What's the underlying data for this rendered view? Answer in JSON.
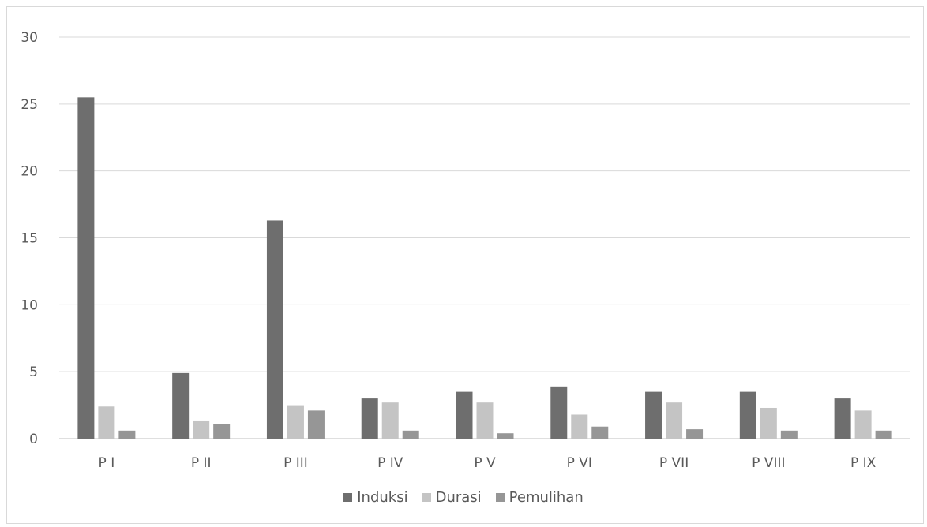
{
  "chart_data": {
    "type": "bar",
    "title": "",
    "xlabel": "",
    "ylabel": "",
    "ylim": [
      0,
      30
    ],
    "yticks": [
      0,
      5,
      10,
      15,
      20,
      25,
      30
    ],
    "grid": true,
    "legend_position": "bottom",
    "categories": [
      "P I",
      "P II",
      "P III",
      "P IV",
      "P V",
      "P VI",
      "P VII",
      "P VIII",
      "P IX"
    ],
    "series": [
      {
        "name": "Induksi",
        "color": "#6e6e6e",
        "values": [
          25.5,
          4.9,
          16.3,
          3.0,
          3.5,
          3.9,
          3.5,
          3.5,
          3.0
        ]
      },
      {
        "name": "Durasi",
        "color": "#c4c4c4",
        "values": [
          2.4,
          1.3,
          2.5,
          2.7,
          2.7,
          1.8,
          2.7,
          2.3,
          2.1
        ]
      },
      {
        "name": "Pemulihan",
        "color": "#969696",
        "values": [
          0.6,
          1.1,
          2.1,
          0.6,
          0.4,
          0.9,
          0.7,
          0.6,
          0.6
        ]
      }
    ]
  }
}
